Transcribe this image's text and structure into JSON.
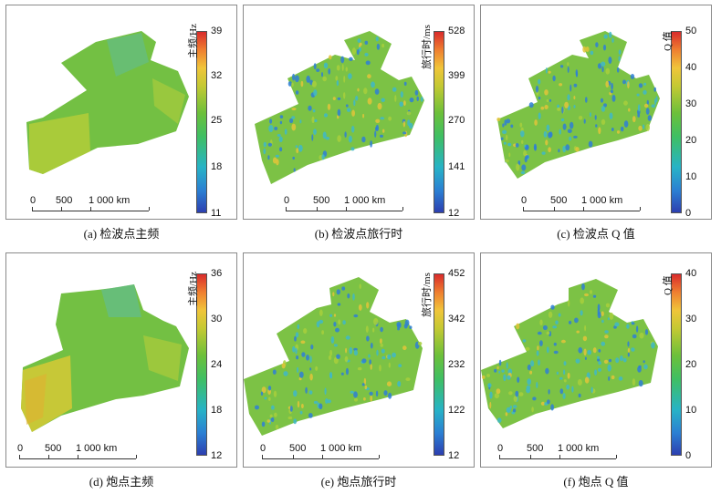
{
  "panels": [
    {
      "caption": "(a) 检波点主频",
      "unit_label": "主频/Hz",
      "ticks": [
        "39",
        "32",
        "25",
        "18",
        "11"
      ],
      "scale_labels": [
        "0",
        "500",
        "1 000 km"
      ]
    },
    {
      "caption": "(b) 检波点旅行时",
      "unit_label": "旅行时/ms",
      "ticks": [
        "528",
        "399",
        "270",
        "141",
        "12"
      ],
      "scale_labels": [
        "0",
        "500",
        "1 000 km"
      ]
    },
    {
      "caption": "(c) 检波点 Q 值",
      "unit_label": "Q 值",
      "ticks": [
        "50",
        "40",
        "30",
        "20",
        "10",
        "0"
      ],
      "scale_labels": [
        "0",
        "500",
        "1 000 km"
      ]
    },
    {
      "caption": "(d) 炮点主频",
      "unit_label": "主频/Hz",
      "ticks": [
        "36",
        "30",
        "24",
        "18",
        "12"
      ],
      "scale_labels": [
        "0",
        "500",
        "1 000 km"
      ]
    },
    {
      "caption": "(e) 炮点旅行时",
      "unit_label": "旅行时/ms",
      "ticks": [
        "452",
        "342",
        "232",
        "122",
        "12"
      ],
      "scale_labels": [
        "0",
        "500",
        "1 000 km"
      ]
    },
    {
      "caption": "(f) 炮点 Q 值",
      "unit_label": "Q 值",
      "ticks": [
        "40",
        "30",
        "20",
        "10",
        "0"
      ],
      "scale_labels": [
        "0",
        "500",
        "1 000 km"
      ]
    }
  ],
  "colors": {
    "map_green": "#73c043",
    "map_light": "#a8cf3c",
    "map_yellow": "#d6c935",
    "speck_blue": "#2f7fd6",
    "speck_cyan": "#3fb8c8",
    "speck_yellow": "#e2c43a",
    "speck_red": "#d9472e"
  }
}
